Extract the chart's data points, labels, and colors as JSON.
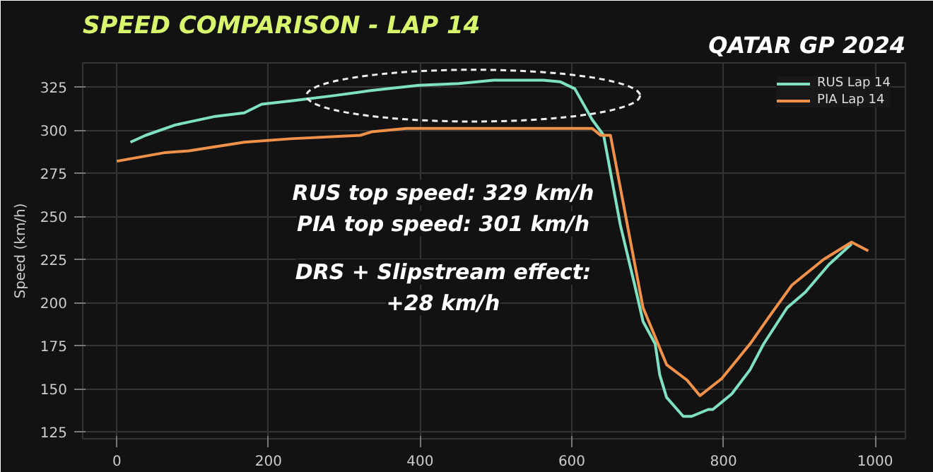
{
  "chart_data": {
    "type": "line",
    "title": "SPEED COMPARISON - LAP 14",
    "ylabel": "Speed (km/h)",
    "annotations": [
      "QATAR GP 2024",
      "RUS top speed: 329 km/h",
      "PIA top speed: 301 km/h",
      "DRS + Slipstream effect:",
      "+28 km/h"
    ],
    "series": [
      {
        "name": "RUS Lap 14",
        "color": "#7fe0c4",
        "x": [
          18,
          38,
          77,
          130,
          168,
          191,
          230,
          286,
          336,
          398,
          451,
          497,
          562,
          585,
          604,
          627,
          642,
          664,
          682,
          694,
          710,
          716,
          725,
          747,
          758,
          780,
          786,
          811,
          835,
          853,
          884,
          908,
          939,
          969
        ],
        "values": [
          293,
          297,
          303,
          308,
          310,
          315,
          317,
          320,
          323,
          326,
          327,
          329,
          329,
          328,
          324,
          306,
          297,
          245,
          212,
          189,
          176,
          158,
          145,
          134,
          134,
          138,
          138,
          147,
          161,
          176,
          197,
          206,
          222,
          234
        ]
      },
      {
        "name": "PIA Lap 14",
        "color": "#f0914a",
        "x": [
          0,
          64,
          95,
          168,
          229,
          321,
          336,
          382,
          451,
          470,
          627,
          638,
          651,
          675,
          694,
          710,
          725,
          752,
          769,
          798,
          835,
          859,
          890,
          932,
          969,
          991
        ],
        "values": [
          282,
          287,
          288,
          293,
          295,
          297,
          299,
          301,
          301,
          301,
          301,
          297,
          297,
          241,
          197,
          180,
          164,
          155,
          146,
          156,
          176,
          191,
          210,
          225,
          235,
          230
        ]
      }
    ],
    "xlim": [
      -45,
      1040
    ],
    "ylim": [
      121,
      339
    ],
    "xticks": [
      0,
      200,
      400,
      600,
      800,
      1000
    ],
    "yticks": [
      125,
      150,
      175,
      200,
      225,
      250,
      275,
      300,
      325
    ],
    "grid": true,
    "legend": "top right",
    "line_style": "solid"
  }
}
